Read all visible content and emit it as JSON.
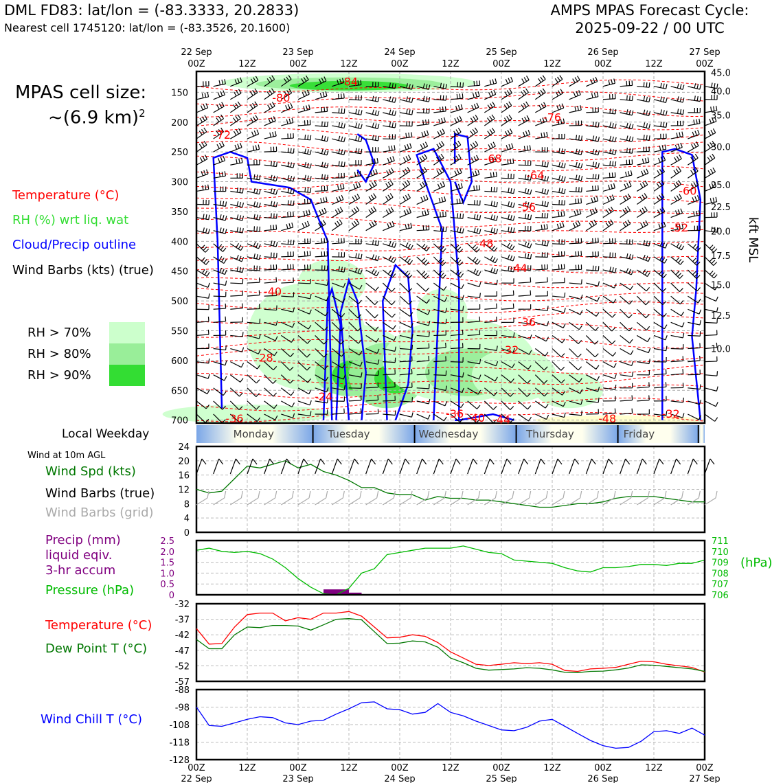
{
  "header": {
    "station": "DML FD83: lat/lon = (-83.3333, 20.2833)",
    "nearest": "Nearest cell 1745120: lat/lon = (-83.3526, 20.1600)",
    "cycle_title": "AMPS MPAS Forecast Cycle:",
    "cycle_time": "2025-09-22 / 00 UTC"
  },
  "cell_size": {
    "line1": "MPAS cell size:",
    "line2": "~(6.9 km)",
    "sup": "2"
  },
  "legend": {
    "temperature": "Temperature (°C)",
    "rh": "RH (%) wrt liq. wat",
    "cloud": "Cloud/Precip outline",
    "wind": "Wind Barbs (kts) (true)",
    "rh70": "RH > 70%",
    "rh80": "RH > 80%",
    "rh90": "RH > 90%",
    "rh_colors": [
      "#ccffcc",
      "#99ee99",
      "#33dd33"
    ]
  },
  "time_axis": {
    "top_hours": [
      "00Z",
      "12Z",
      "00Z",
      "12Z",
      "00Z",
      "12Z",
      "00Z",
      "12Z",
      "00Z",
      "12Z",
      "00Z"
    ],
    "top_dates": [
      "22 Sep",
      "23 Sep",
      "24 Sep",
      "25 Sep",
      "26 Sep",
      "27 Sep"
    ],
    "bottom_hours": [
      "00Z",
      "12Z",
      "00Z",
      "12Z",
      "00Z",
      "12Z",
      "00Z",
      "12Z",
      "00Z",
      "12Z",
      "00Z"
    ],
    "bottom_dates": [
      "22 Sep",
      "23 Sep",
      "24 Sep",
      "25 Sep",
      "26 Sep",
      "27 Sep"
    ]
  },
  "weekday": {
    "label": "Local Weekday",
    "days": [
      "Monday",
      "Tuesday",
      "Wednesday",
      "Thursday",
      "Friday"
    ]
  },
  "panels": {
    "wind_title": "Wind at 10m AGL",
    "wind_spd": "Wind Spd (kts)",
    "wind_true": "Wind Barbs (true)",
    "wind_grid": "Wind Barbs (grid)",
    "precip1": "Precip (mm)",
    "precip2": "liquid eqiv.",
    "precip3": "3-hr accum",
    "pressure": "Pressure (hPa)",
    "pressure_unit": "(hPa)",
    "temp": "Temperature (°C)",
    "dew": "Dew Point T (°C)",
    "chill": "Wind Chill T (°C)"
  },
  "colors": {
    "temp": "#ff0000",
    "rh": "#33dd33",
    "cloud": "#0000ff",
    "precip": "#800080",
    "pressure": "#00bb00",
    "dew": "#007700",
    "chill": "#0000ff",
    "grid_barb": "#aaaaaa"
  },
  "chart_data": [
    {
      "type": "heatmap",
      "title": "",
      "xlabel": "",
      "ylabel": "kft MSL",
      "y_pressure_ticks": [
        150,
        200,
        250,
        300,
        350,
        400,
        450,
        500,
        550,
        600,
        650,
        700
      ],
      "y_pressure_range": [
        115,
        705
      ],
      "y_kft_ticks": [
        "45.0",
        "40.0",
        "35.0",
        "30.0",
        "25.0",
        "22.5",
        "20.0",
        "17.5",
        "15.0",
        "12.5",
        "10.0"
      ],
      "temp_contour_labels": [
        {
          "v": "-84",
          "t": 36,
          "p": 133
        },
        {
          "v": "-80",
          "t": 20,
          "p": 160
        },
        {
          "v": "-76",
          "t": 84,
          "p": 193
        },
        {
          "v": "-72",
          "t": 6,
          "p": 222
        },
        {
          "v": "-68",
          "t": 70,
          "p": 262
        },
        {
          "v": "-64",
          "t": 80,
          "p": 290
        },
        {
          "v": "-60",
          "t": 116,
          "p": 316
        },
        {
          "v": "-56",
          "t": 78,
          "p": 343
        },
        {
          "v": "-52",
          "t": 114,
          "p": 378
        },
        {
          "v": "-48",
          "t": 68,
          "p": 404
        },
        {
          "v": "-44",
          "t": 76,
          "p": 446
        },
        {
          "v": "-40",
          "t": 18,
          "p": 485
        },
        {
          "v": "-36",
          "t": 78,
          "p": 536
        },
        {
          "v": "-32",
          "t": 74,
          "p": 583
        },
        {
          "v": "-28",
          "t": 16,
          "p": 596
        },
        {
          "v": "-24",
          "t": 30,
          "p": 661
        },
        {
          "v": "-36",
          "t": 9,
          "p": 698
        },
        {
          "v": "-36",
          "t": 61,
          "p": 690
        },
        {
          "v": "-40",
          "t": 66,
          "p": 697
        },
        {
          "v": "-44",
          "t": 72,
          "p": 700
        },
        {
          "v": "-48",
          "t": 97,
          "p": 698
        },
        {
          "v": "-32",
          "t": 112,
          "p": 690
        }
      ],
      "time_range_hours": [
        0,
        120
      ]
    },
    {
      "type": "line",
      "title": "",
      "series": [
        {
          "name": "Wind Spd (kts)",
          "x": [
            0,
            3,
            6,
            9,
            12,
            15,
            18,
            21,
            24,
            27,
            30,
            33,
            36,
            39,
            42,
            45,
            48,
            51,
            54,
            57,
            60,
            63,
            66,
            69,
            72,
            75,
            78,
            81,
            84,
            87,
            90,
            93,
            96,
            99,
            102,
            105,
            108,
            111,
            114,
            117,
            120
          ],
          "values": [
            12,
            11,
            11.5,
            15,
            18.5,
            18,
            19,
            20,
            18,
            19,
            17,
            16,
            14.5,
            12.5,
            12.5,
            11,
            10.5,
            10.5,
            9,
            10,
            9.5,
            9.5,
            9,
            9,
            8.5,
            8,
            7.5,
            7,
            7,
            7.5,
            8,
            8,
            8.5,
            9.5,
            10,
            10,
            10,
            9.5,
            9,
            8.5,
            8.5
          ]
        }
      ],
      "ylim": [
        0,
        24
      ],
      "yticks": [
        0,
        4,
        8,
        12,
        16,
        20,
        24
      ]
    },
    {
      "type": "line",
      "title": "",
      "series": [
        {
          "name": "Pressure (hPa)",
          "x": [
            0,
            3,
            6,
            9,
            12,
            15,
            18,
            21,
            24,
            27,
            30,
            33,
            36,
            39,
            42,
            45,
            48,
            51,
            54,
            57,
            60,
            63,
            66,
            69,
            72,
            75,
            78,
            81,
            84,
            87,
            90,
            93,
            96,
            99,
            102,
            105,
            108,
            111,
            114,
            117,
            120
          ],
          "values": [
            710.1,
            710.3,
            710,
            709.9,
            710,
            709.8,
            709.3,
            708.5,
            707.5,
            706.7,
            706.1,
            706,
            706.6,
            708,
            708.4,
            709.7,
            709.9,
            710.1,
            710.3,
            710.3,
            710.3,
            710.5,
            710.2,
            709.9,
            709.8,
            709.2,
            709.1,
            709,
            708.9,
            708.5,
            708.2,
            708.1,
            708.5,
            708.5,
            708.6,
            708.8,
            708.8,
            708.7,
            708.9,
            708.9,
            709.2
          ]
        },
        {
          "name": "Precip (mm)",
          "x": [
            30,
            33,
            36
          ],
          "values": [
            0.25,
            0.25,
            0.1
          ]
        }
      ],
      "ylim_precip": [
        0,
        2.5
      ],
      "yticks_precip": [
        "0",
        "0.5",
        "1.0",
        "1.5",
        "2.0",
        "2.5"
      ],
      "ylim_pressure": [
        706,
        711
      ],
      "yticks_pressure": [
        "706",
        "707",
        "708",
        "709",
        "710",
        "711"
      ]
    },
    {
      "type": "line",
      "title": "",
      "series": [
        {
          "name": "Temperature (°C)",
          "x": [
            0,
            3,
            6,
            9,
            12,
            15,
            18,
            21,
            24,
            27,
            30,
            33,
            36,
            39,
            42,
            45,
            48,
            51,
            54,
            57,
            60,
            63,
            66,
            69,
            72,
            75,
            78,
            81,
            84,
            87,
            90,
            93,
            96,
            99,
            102,
            105,
            108,
            111,
            114,
            117,
            120
          ],
          "values": [
            -40,
            -45,
            -44.8,
            -39.5,
            -35.5,
            -35,
            -35,
            -37.5,
            -36.5,
            -37,
            -35,
            -35,
            -34.5,
            -36,
            -39.5,
            -43,
            -42.8,
            -42,
            -42.5,
            -44.5,
            -47.5,
            -49.5,
            -51.5,
            -51.9,
            -51.5,
            -51,
            -51.3,
            -51,
            -51.5,
            -53.5,
            -53.8,
            -53,
            -52.8,
            -52.5,
            -51.5,
            -50.5,
            -50.7,
            -51.5,
            -52,
            -52.5,
            -54
          ]
        },
        {
          "name": "Dew Point T (°C)",
          "x": [
            0,
            3,
            6,
            9,
            12,
            15,
            18,
            21,
            24,
            27,
            30,
            33,
            36,
            39,
            42,
            45,
            48,
            51,
            54,
            57,
            60,
            63,
            66,
            69,
            72,
            75,
            78,
            81,
            84,
            87,
            90,
            93,
            96,
            99,
            102,
            105,
            108,
            111,
            114,
            117,
            120
          ],
          "values": [
            -43.5,
            -46.5,
            -46.5,
            -42,
            -39.5,
            -39.7,
            -39,
            -39,
            -39.2,
            -40.5,
            -38.8,
            -37,
            -36.8,
            -37.2,
            -41,
            -44.8,
            -44.7,
            -44,
            -44.3,
            -46,
            -49.5,
            -51,
            -52.8,
            -53.4,
            -53.2,
            -53,
            -52.6,
            -52.8,
            -53.3,
            -54.1,
            -54.2,
            -53.8,
            -53.7,
            -53.3,
            -52.7,
            -51.7,
            -51.8,
            -52.2,
            -52.6,
            -53,
            -53.8
          ]
        }
      ],
      "ylim": [
        -57,
        -32
      ],
      "yticks": [
        -57,
        -52,
        -47,
        -42,
        -37,
        -32
      ]
    },
    {
      "type": "line",
      "title": "",
      "series": [
        {
          "name": "Wind Chill T (°C)",
          "x": [
            0,
            3,
            6,
            9,
            12,
            15,
            18,
            21,
            24,
            27,
            30,
            33,
            36,
            39,
            42,
            45,
            48,
            51,
            54,
            57,
            60,
            63,
            66,
            69,
            72,
            75,
            78,
            81,
            84,
            87,
            90,
            93,
            96,
            99,
            102,
            105,
            108,
            111,
            114,
            117,
            120
          ],
          "values": [
            -98,
            -108.5,
            -109,
            -107,
            -105,
            -103.5,
            -104,
            -107,
            -108,
            -106,
            -105.5,
            -102,
            -99,
            -95.5,
            -95,
            -99,
            -99.5,
            -102,
            -101,
            -96,
            -101,
            -103,
            -106,
            -108.5,
            -111,
            -111.5,
            -109.5,
            -106,
            -105,
            -109,
            -113,
            -117,
            -120,
            -121.5,
            -121,
            -117.5,
            -112,
            -111.5,
            -113,
            -110,
            -114
          ]
        }
      ],
      "ylim": [
        -128,
        -88
      ],
      "yticks": [
        -128,
        -118,
        -108,
        -98,
        -88
      ]
    }
  ]
}
